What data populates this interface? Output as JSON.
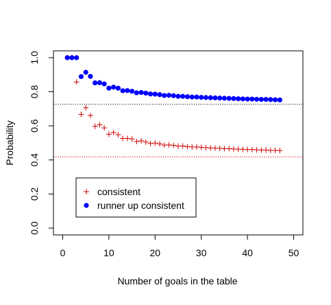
{
  "chart_data": {
    "type": "scatter",
    "title": "",
    "xlabel": "Number of goals in the table",
    "ylabel": "Probability",
    "xlim": [
      -2,
      52
    ],
    "ylim": [
      -0.04,
      1.04
    ],
    "x_ticks": [
      0,
      10,
      20,
      30,
      40,
      50
    ],
    "y_ticks": [
      0.0,
      0.2,
      0.4,
      0.6,
      0.8,
      1.0
    ],
    "x_tick_labels": [
      "0",
      "10",
      "20",
      "30",
      "40",
      "50"
    ],
    "y_tick_labels": [
      "0.0",
      "0.2",
      "0.4",
      "0.6",
      "0.8",
      "1.0"
    ],
    "grid": false,
    "legend_position": "bottom-left",
    "reference_lines": [
      {
        "y": 0.726,
        "color": "#000000",
        "style": "dotted"
      },
      {
        "y": 0.418,
        "color": "#cc0000",
        "style": "dotted"
      }
    ],
    "series": [
      {
        "name": "consistent",
        "marker": "plus",
        "color": "#cc0000",
        "x": [
          1,
          2,
          3,
          4,
          5,
          6,
          7,
          8,
          9,
          10,
          11,
          12,
          13,
          14,
          15,
          16,
          17,
          18,
          19,
          20,
          21,
          22,
          23,
          24,
          25,
          26,
          27,
          28,
          29,
          30,
          31,
          32,
          33,
          34,
          35,
          36,
          37,
          38,
          39,
          40,
          41,
          42,
          43,
          44,
          45,
          46,
          47
        ],
        "y": [
          1.0,
          1.0,
          0.857,
          0.667,
          0.706,
          0.661,
          0.597,
          0.606,
          0.588,
          0.551,
          0.561,
          0.548,
          0.526,
          0.526,
          0.523,
          0.508,
          0.512,
          0.505,
          0.497,
          0.499,
          0.494,
          0.487,
          0.488,
          0.485,
          0.481,
          0.482,
          0.478,
          0.476,
          0.476,
          0.474,
          0.472,
          0.47,
          0.469,
          0.468,
          0.466,
          0.466,
          0.464,
          0.463,
          0.462,
          0.461,
          0.461,
          0.459,
          0.458,
          0.458,
          0.456,
          0.456,
          0.455
        ]
      },
      {
        "name": "runner up consistent",
        "marker": "dot",
        "color": "#0000ff",
        "x": [
          1,
          2,
          3,
          4,
          5,
          6,
          7,
          8,
          9,
          10,
          11,
          12,
          13,
          14,
          15,
          16,
          17,
          18,
          19,
          20,
          21,
          22,
          23,
          24,
          25,
          26,
          27,
          28,
          29,
          30,
          31,
          32,
          33,
          34,
          35,
          36,
          37,
          38,
          39,
          40,
          41,
          42,
          43,
          44,
          45,
          46,
          47
        ],
        "y": [
          1.0,
          1.0,
          1.0,
          0.889,
          0.914,
          0.89,
          0.852,
          0.853,
          0.846,
          0.821,
          0.827,
          0.821,
          0.806,
          0.807,
          0.803,
          0.794,
          0.796,
          0.792,
          0.787,
          0.786,
          0.783,
          0.778,
          0.779,
          0.777,
          0.773,
          0.773,
          0.771,
          0.769,
          0.769,
          0.767,
          0.766,
          0.765,
          0.764,
          0.763,
          0.762,
          0.761,
          0.76,
          0.759,
          0.758,
          0.757,
          0.757,
          0.756,
          0.755,
          0.755,
          0.754,
          0.753,
          0.752
        ]
      }
    ]
  },
  "colors": {
    "consistent": "#cc0000",
    "runner_up": "#0000ff",
    "axis": "#000000"
  }
}
